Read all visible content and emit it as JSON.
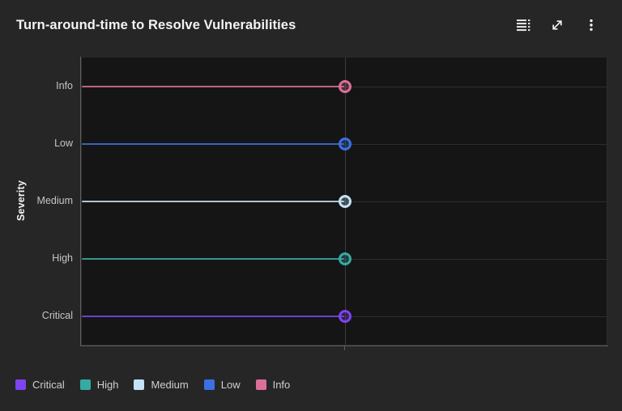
{
  "header": {
    "title": "Turn-around-time to Resolve Vulnerabilities",
    "icons": [
      "data-table-icon",
      "maximize-icon",
      "overflow-menu-icon"
    ]
  },
  "colors": {
    "card_background": "#262626",
    "plot_background": "#151515",
    "gridline": "#2e2e2e",
    "vertical_gridline": "#3c3c3c",
    "axis_line": "#5f5f5f",
    "title_text": "#f4f4f4",
    "axis_label_text": "#c6c6c6",
    "legend_text": "#cfcfcf"
  },
  "chart_data": {
    "type": "lollipop",
    "title": "Turn-around-time to Resolve Vulnerabilities",
    "xlabel": "",
    "ylabel": "Severity",
    "categories": [
      "Info",
      "Low",
      "Medium",
      "High",
      "Critical"
    ],
    "series": [
      {
        "name": "Info",
        "color": "#db6f9a",
        "x_fraction": 0.5
      },
      {
        "name": "Low",
        "color": "#3b70e2",
        "x_fraction": 0.5
      },
      {
        "name": "Medium",
        "color": "#c4e2f4",
        "x_fraction": 0.5
      },
      {
        "name": "High",
        "color": "#37aaa2",
        "x_fraction": 0.5
      },
      {
        "name": "Critical",
        "color": "#7d44f0",
        "x_fraction": 0.5
      }
    ],
    "x_axis": {
      "tick_labels_visible": false,
      "gridline_x_fraction": 0.5015
    },
    "grid": true,
    "legend_position": "bottom"
  },
  "legend": {
    "items": [
      {
        "label": "Critical",
        "color": "#7d44f0"
      },
      {
        "label": "High",
        "color": "#37aaa2"
      },
      {
        "label": "Medium",
        "color": "#c4e2f4"
      },
      {
        "label": "Low",
        "color": "#3b70e2"
      },
      {
        "label": "Info",
        "color": "#db6f9a"
      }
    ]
  }
}
